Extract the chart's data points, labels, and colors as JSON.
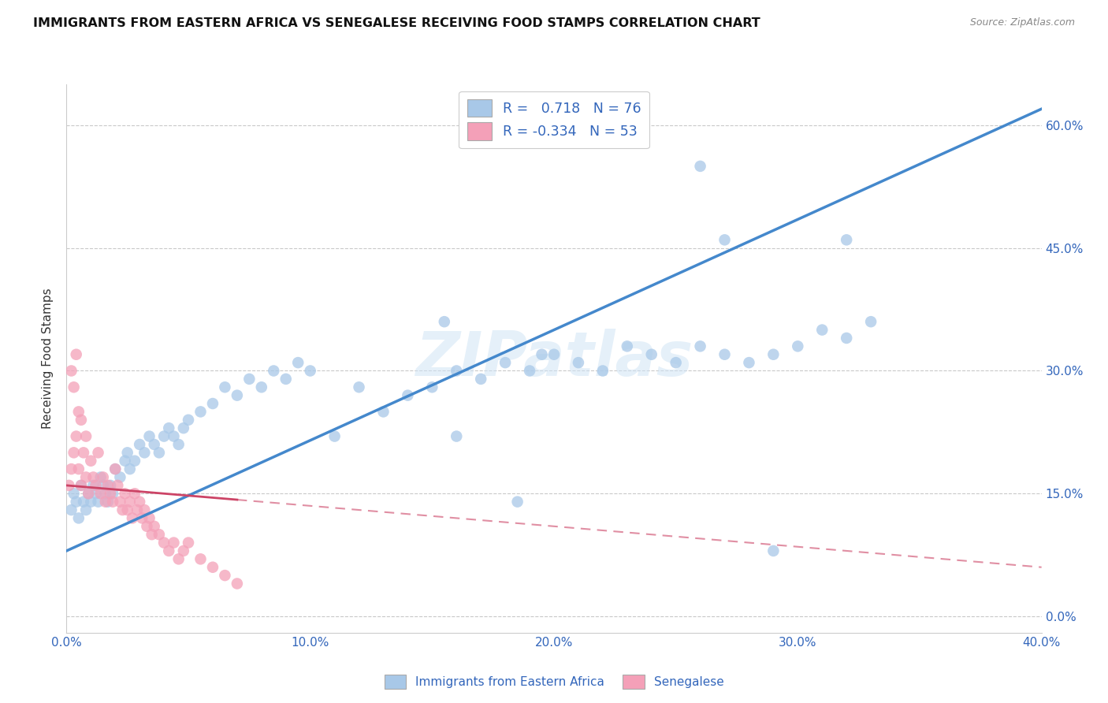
{
  "title": "IMMIGRANTS FROM EASTERN AFRICA VS SENEGALESE RECEIVING FOOD STAMPS CORRELATION CHART",
  "source": "Source: ZipAtlas.com",
  "ylabel_left": "Receiving Food Stamps",
  "legend_label1": "Immigrants from Eastern Africa",
  "legend_label2": "Senegalese",
  "blue_color": "#a8c8e8",
  "pink_color": "#f4a0b8",
  "blue_line_color": "#4488cc",
  "pink_line_color": "#cc4466",
  "background": "#ffffff",
  "grid_color": "#cccccc",
  "xlim": [
    0.0,
    0.4
  ],
  "ylim": [
    -0.02,
    0.65
  ],
  "x_ticks": [
    0.0,
    0.1,
    0.2,
    0.3,
    0.4
  ],
  "y_ticks": [
    0.0,
    0.15,
    0.3,
    0.45,
    0.6
  ],
  "blue_R": 0.718,
  "blue_N": 76,
  "pink_R": -0.334,
  "pink_N": 53,
  "blue_x": [
    0.002,
    0.003,
    0.004,
    0.005,
    0.006,
    0.007,
    0.008,
    0.009,
    0.01,
    0.011,
    0.012,
    0.013,
    0.014,
    0.015,
    0.016,
    0.017,
    0.018,
    0.019,
    0.02,
    0.022,
    0.024,
    0.025,
    0.026,
    0.028,
    0.03,
    0.032,
    0.034,
    0.036,
    0.038,
    0.04,
    0.042,
    0.044,
    0.046,
    0.048,
    0.05,
    0.055,
    0.06,
    0.065,
    0.07,
    0.075,
    0.08,
    0.085,
    0.09,
    0.095,
    0.1,
    0.11,
    0.12,
    0.13,
    0.14,
    0.15,
    0.16,
    0.17,
    0.18,
    0.19,
    0.2,
    0.21,
    0.22,
    0.23,
    0.24,
    0.25,
    0.26,
    0.27,
    0.28,
    0.29,
    0.3,
    0.31,
    0.32,
    0.33,
    0.195,
    0.155,
    0.27,
    0.26,
    0.32,
    0.29,
    0.16,
    0.185
  ],
  "blue_y": [
    0.13,
    0.15,
    0.14,
    0.12,
    0.16,
    0.14,
    0.13,
    0.15,
    0.14,
    0.16,
    0.15,
    0.14,
    0.17,
    0.16,
    0.15,
    0.14,
    0.16,
    0.15,
    0.18,
    0.17,
    0.19,
    0.2,
    0.18,
    0.19,
    0.21,
    0.2,
    0.22,
    0.21,
    0.2,
    0.22,
    0.23,
    0.22,
    0.21,
    0.23,
    0.24,
    0.25,
    0.26,
    0.28,
    0.27,
    0.29,
    0.28,
    0.3,
    0.29,
    0.31,
    0.3,
    0.22,
    0.28,
    0.25,
    0.27,
    0.28,
    0.3,
    0.29,
    0.31,
    0.3,
    0.32,
    0.31,
    0.3,
    0.33,
    0.32,
    0.31,
    0.33,
    0.32,
    0.31,
    0.32,
    0.33,
    0.35,
    0.34,
    0.36,
    0.32,
    0.36,
    0.46,
    0.55,
    0.46,
    0.08,
    0.22,
    0.14
  ],
  "pink_x": [
    0.001,
    0.002,
    0.003,
    0.004,
    0.005,
    0.006,
    0.007,
    0.008,
    0.009,
    0.01,
    0.011,
    0.012,
    0.013,
    0.014,
    0.015,
    0.016,
    0.017,
    0.018,
    0.019,
    0.02,
    0.021,
    0.022,
    0.023,
    0.024,
    0.025,
    0.026,
    0.027,
    0.028,
    0.029,
    0.03,
    0.031,
    0.032,
    0.033,
    0.034,
    0.035,
    0.036,
    0.038,
    0.04,
    0.042,
    0.044,
    0.046,
    0.048,
    0.05,
    0.055,
    0.06,
    0.065,
    0.07,
    0.002,
    0.003,
    0.004,
    0.005,
    0.006,
    0.008
  ],
  "pink_y": [
    0.16,
    0.18,
    0.2,
    0.22,
    0.18,
    0.16,
    0.2,
    0.17,
    0.15,
    0.19,
    0.17,
    0.16,
    0.2,
    0.15,
    0.17,
    0.14,
    0.16,
    0.15,
    0.14,
    0.18,
    0.16,
    0.14,
    0.13,
    0.15,
    0.13,
    0.14,
    0.12,
    0.15,
    0.13,
    0.14,
    0.12,
    0.13,
    0.11,
    0.12,
    0.1,
    0.11,
    0.1,
    0.09,
    0.08,
    0.09,
    0.07,
    0.08,
    0.09,
    0.07,
    0.06,
    0.05,
    0.04,
    0.3,
    0.28,
    0.32,
    0.25,
    0.24,
    0.22
  ]
}
